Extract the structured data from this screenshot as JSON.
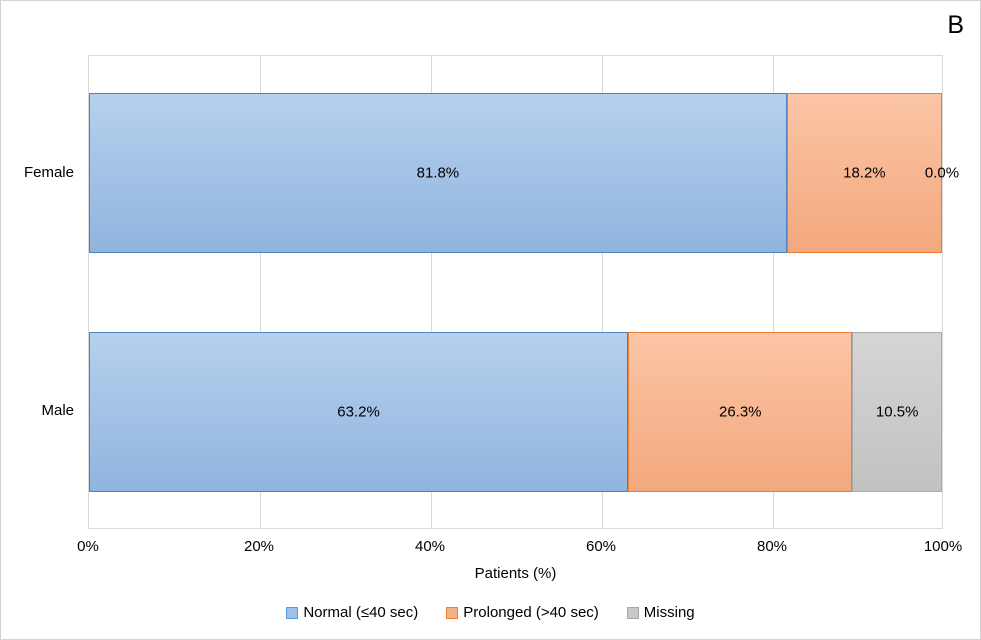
{
  "panel_label": "B",
  "colors": {
    "normal_fill_top": "#B7D0ED",
    "normal_fill_bottom": "#90B4DF",
    "normal_border": "#4E81BD",
    "prolonged_fill_top": "#FBC5A6",
    "prolonged_fill_bottom": "#F3A87D",
    "prolonged_border": "#ED7D31",
    "missing_fill_top": "#D5D5D5",
    "missing_fill_bottom": "#C2C2C2",
    "missing_border": "#ABABAB",
    "gridline": "#D9D9D9",
    "text": "#000000"
  },
  "chart_data": {
    "type": "bar",
    "orientation": "horizontal",
    "stacked": true,
    "categories": [
      "Female",
      "Male"
    ],
    "series": [
      {
        "name": "Normal (≤40 sec)",
        "values": [
          81.8,
          63.2
        ]
      },
      {
        "name": "Prolonged (>40 sec)",
        "values": [
          18.2,
          26.3
        ]
      },
      {
        "name": "Missing",
        "values": [
          0.0,
          10.5
        ]
      }
    ],
    "data_labels": [
      [
        "81.8%",
        "18.2%",
        "0.0%"
      ],
      [
        "63.2%",
        "26.3%",
        "10.5%"
      ]
    ],
    "xlabel": "Patients (%)",
    "x_ticks": [
      "0%",
      "20%",
      "40%",
      "60%",
      "80%",
      "100%"
    ],
    "xlim": [
      0,
      100
    ],
    "grid": "vertical",
    "legend_position": "bottom"
  }
}
